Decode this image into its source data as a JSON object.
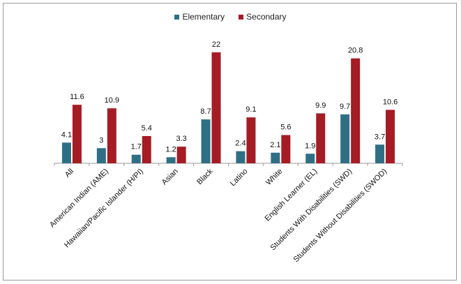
{
  "chart_data": {
    "type": "bar",
    "categories": [
      "All",
      "American Indian (AME)",
      "Hawaiian/Pacific Islander (H/PI)",
      "Asian",
      "Black",
      "Latino",
      "White",
      "English Learner (EL)",
      "Students With Disabilities (SWD)",
      "Students Without Disabilities (SWOD)"
    ],
    "series": [
      {
        "name": "Elementary",
        "color": "#2f6f86",
        "values": [
          4.1,
          3,
          1.7,
          1.2,
          8.7,
          2.4,
          2.1,
          1.9,
          9.7,
          3.7
        ]
      },
      {
        "name": "Secondary",
        "color": "#a51c24",
        "values": [
          11.6,
          10.9,
          5.4,
          3.3,
          22,
          9.1,
          5.6,
          9.9,
          20.8,
          10.6
        ]
      }
    ],
    "value_labels": [
      [
        "4.1",
        "3",
        "1.7",
        "1.2",
        "8.7",
        "2.4",
        "2.1",
        "1.9",
        "9.7",
        "3.7"
      ],
      [
        "11.6",
        "10.9",
        "5.4",
        "3.3",
        "22",
        "9.1",
        "5.6",
        "9.9",
        "20.8",
        "10.6"
      ]
    ],
    "ylim": [
      0,
      22
    ],
    "legend": "top-center",
    "grid": false
  }
}
